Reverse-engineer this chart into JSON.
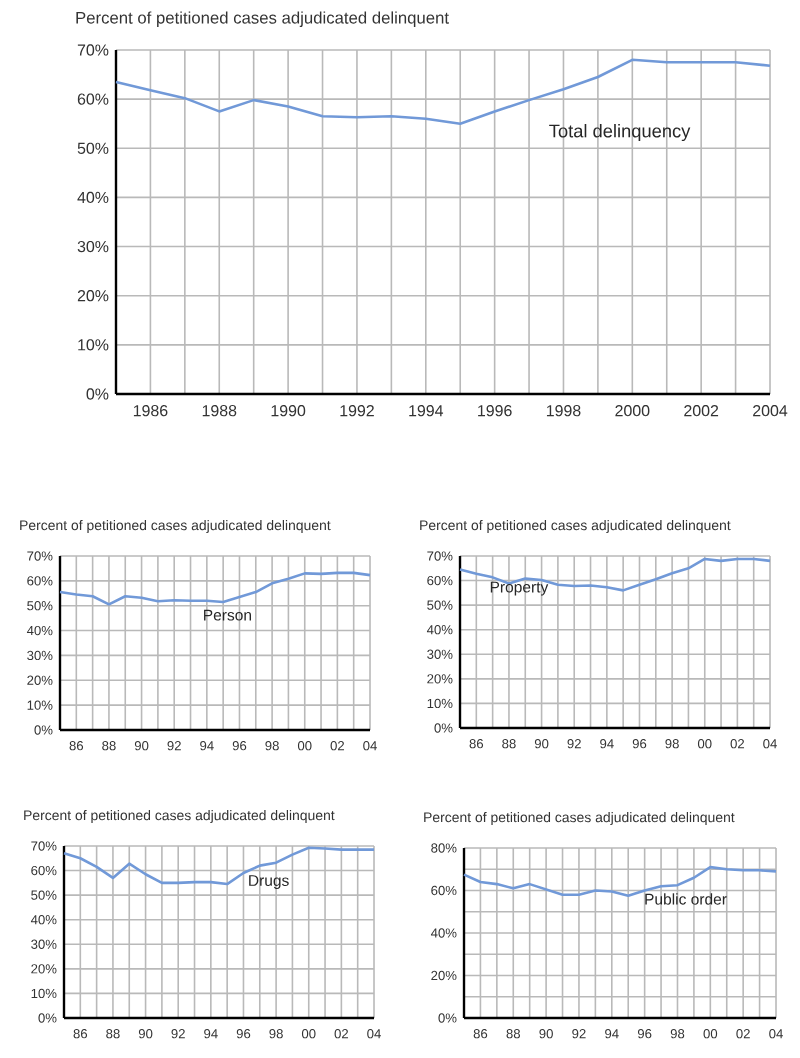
{
  "chart_data": [
    {
      "type": "line",
      "ylabel": "Percent of petitioned cases adjudicated delinquent",
      "x": [
        1985,
        1986,
        1987,
        1988,
        1989,
        1990,
        1991,
        1992,
        1993,
        1994,
        1995,
        1996,
        1997,
        1998,
        1999,
        2000,
        2001,
        2002,
        2003,
        2004
      ],
      "series": [
        {
          "name": "Total delinquency",
          "color": "#7199d8",
          "values": [
            63.5,
            61.8,
            60.2,
            57.5,
            59.8,
            58.5,
            56.5,
            56.3,
            56.5,
            56.0,
            55.0,
            57.5,
            59.8,
            62.0,
            64.5,
            68.0,
            67.5,
            67.5,
            67.5,
            66.8
          ]
        }
      ],
      "xlim": [
        1985,
        2004
      ],
      "ylim": [
        0,
        70
      ],
      "xticks": [
        {
          "value": 1985,
          "label": null
        },
        1986,
        {
          "value": 1987,
          "label": null
        },
        1988,
        {
          "value": 1989,
          "label": null
        },
        1990,
        {
          "value": 1991,
          "label": null
        },
        1992,
        {
          "value": 1993,
          "label": null
        },
        1994,
        {
          "value": 1995,
          "label": null
        },
        1996,
        {
          "value": 1997,
          "label": null
        },
        1998,
        {
          "value": 1999,
          "label": null
        },
        2000,
        {
          "value": 2001,
          "label": null
        },
        2002,
        {
          "value": 2003,
          "label": null
        },
        2004
      ],
      "yticks": [
        {
          "value": 0,
          "label": "0%"
        },
        {
          "value": 10,
          "label": "10%"
        },
        {
          "value": 20,
          "label": "20%"
        },
        {
          "value": 30,
          "label": "30%"
        },
        {
          "value": 40,
          "label": "40%"
        },
        {
          "value": 50,
          "label": "50%"
        },
        {
          "value": 60,
          "label": "60%"
        },
        {
          "value": 70,
          "label": "70%"
        }
      ],
      "grid": true
    },
    {
      "type": "line",
      "ylabel": "Percent of petitioned cases adjudicated delinquent",
      "x": [
        1985,
        1986,
        1987,
        1988,
        1989,
        1990,
        1991,
        1992,
        1993,
        1994,
        1995,
        1996,
        1997,
        1998,
        1999,
        2000,
        2001,
        2002,
        2003,
        2004
      ],
      "series": [
        {
          "name": "Person",
          "color": "#7199d8",
          "values": [
            55.5,
            54.5,
            53.8,
            50.5,
            53.8,
            53.2,
            51.8,
            52.2,
            52.0,
            52.0,
            51.5,
            53.5,
            55.5,
            59.0,
            60.8,
            63.0,
            62.8,
            63.2,
            63.2,
            62.3
          ]
        }
      ],
      "xlim": [
        1985,
        2004
      ],
      "ylim": [
        0,
        70
      ],
      "xticks": [
        {
          "value": 1985,
          "label": null
        },
        {
          "value": 1986,
          "label": "86"
        },
        {
          "value": 1987,
          "label": null
        },
        {
          "value": 1988,
          "label": "88"
        },
        {
          "value": 1989,
          "label": null
        },
        {
          "value": 1990,
          "label": "90"
        },
        {
          "value": 1991,
          "label": null
        },
        {
          "value": 1992,
          "label": "92"
        },
        {
          "value": 1993,
          "label": null
        },
        {
          "value": 1994,
          "label": "94"
        },
        {
          "value": 1995,
          "label": null
        },
        {
          "value": 1996,
          "label": "96"
        },
        {
          "value": 1997,
          "label": null
        },
        {
          "value": 1998,
          "label": "98"
        },
        {
          "value": 1999,
          "label": null
        },
        {
          "value": 2000,
          "label": "00"
        },
        {
          "value": 2001,
          "label": null
        },
        {
          "value": 2002,
          "label": "02"
        },
        {
          "value": 2003,
          "label": null
        },
        {
          "value": 2004,
          "label": "04"
        }
      ],
      "yticks": [
        {
          "value": 0,
          "label": "0%"
        },
        {
          "value": 10,
          "label": "10%"
        },
        {
          "value": 20,
          "label": "20%"
        },
        {
          "value": 30,
          "label": "30%"
        },
        {
          "value": 40,
          "label": "40%"
        },
        {
          "value": 50,
          "label": "50%"
        },
        {
          "value": 60,
          "label": "60%"
        },
        {
          "value": 70,
          "label": "70%"
        }
      ],
      "grid": true
    },
    {
      "type": "line",
      "ylabel": "Percent of petitioned cases adjudicated delinquent",
      "x": [
        1985,
        1986,
        1987,
        1988,
        1989,
        1990,
        1991,
        1992,
        1993,
        1994,
        1995,
        1996,
        1997,
        1998,
        1999,
        2000,
        2001,
        2002,
        2003,
        2004
      ],
      "series": [
        {
          "name": "Property",
          "color": "#7199d8",
          "values": [
            64.5,
            62.8,
            61.3,
            58.8,
            60.8,
            60.2,
            58.3,
            57.8,
            58.0,
            57.3,
            56.0,
            58.3,
            60.5,
            63.0,
            65.0,
            68.8,
            68.0,
            68.8,
            68.8,
            68.0
          ]
        }
      ],
      "xlim": [
        1985,
        2004
      ],
      "ylim": [
        0,
        70
      ],
      "xticks": [
        {
          "value": 1985,
          "label": null
        },
        {
          "value": 1986,
          "label": "86"
        },
        {
          "value": 1987,
          "label": null
        },
        {
          "value": 1988,
          "label": "88"
        },
        {
          "value": 1989,
          "label": null
        },
        {
          "value": 1990,
          "label": "90"
        },
        {
          "value": 1991,
          "label": null
        },
        {
          "value": 1992,
          "label": "92"
        },
        {
          "value": 1993,
          "label": null
        },
        {
          "value": 1994,
          "label": "94"
        },
        {
          "value": 1995,
          "label": null
        },
        {
          "value": 1996,
          "label": "96"
        },
        {
          "value": 1997,
          "label": null
        },
        {
          "value": 1998,
          "label": "98"
        },
        {
          "value": 1999,
          "label": null
        },
        {
          "value": 2000,
          "label": "00"
        },
        {
          "value": 2001,
          "label": null
        },
        {
          "value": 2002,
          "label": "02"
        },
        {
          "value": 2003,
          "label": null
        },
        {
          "value": 2004,
          "label": "04"
        }
      ],
      "yticks": [
        {
          "value": 0,
          "label": "0%"
        },
        {
          "value": 10,
          "label": "10%"
        },
        {
          "value": 20,
          "label": "20%"
        },
        {
          "value": 30,
          "label": "30%"
        },
        {
          "value": 40,
          "label": "40%"
        },
        {
          "value": 50,
          "label": "50%"
        },
        {
          "value": 60,
          "label": "60%"
        },
        {
          "value": 70,
          "label": "70%"
        }
      ],
      "grid": true
    },
    {
      "type": "line",
      "ylabel": "Percent of petitioned cases adjudicated delinquent",
      "x": [
        1985,
        1986,
        1987,
        1988,
        1989,
        1990,
        1991,
        1992,
        1993,
        1994,
        1995,
        1996,
        1997,
        1998,
        1999,
        2000,
        2001,
        2002,
        2003,
        2004
      ],
      "series": [
        {
          "name": "Drugs",
          "color": "#7199d8",
          "values": [
            67.0,
            65.0,
            61.5,
            57.0,
            62.8,
            58.5,
            55.0,
            55.0,
            55.3,
            55.3,
            54.5,
            59.0,
            62.0,
            63.2,
            66.5,
            69.3,
            69.0,
            68.5,
            68.5,
            68.5
          ]
        }
      ],
      "xlim": [
        1985,
        2004
      ],
      "ylim": [
        0,
        70
      ],
      "xticks": [
        {
          "value": 1985,
          "label": null
        },
        {
          "value": 1986,
          "label": "86"
        },
        {
          "value": 1987,
          "label": null
        },
        {
          "value": 1988,
          "label": "88"
        },
        {
          "value": 1989,
          "label": null
        },
        {
          "value": 1990,
          "label": "90"
        },
        {
          "value": 1991,
          "label": null
        },
        {
          "value": 1992,
          "label": "92"
        },
        {
          "value": 1993,
          "label": null
        },
        {
          "value": 1994,
          "label": "94"
        },
        {
          "value": 1995,
          "label": null
        },
        {
          "value": 1996,
          "label": "96"
        },
        {
          "value": 1997,
          "label": null
        },
        {
          "value": 1998,
          "label": "98"
        },
        {
          "value": 1999,
          "label": null
        },
        {
          "value": 2000,
          "label": "00"
        },
        {
          "value": 2001,
          "label": null
        },
        {
          "value": 2002,
          "label": "02"
        },
        {
          "value": 2003,
          "label": null
        },
        {
          "value": 2004,
          "label": "04"
        }
      ],
      "yticks": [
        {
          "value": 0,
          "label": "0%"
        },
        {
          "value": 10,
          "label": "10%"
        },
        {
          "value": 20,
          "label": "20%"
        },
        {
          "value": 30,
          "label": "30%"
        },
        {
          "value": 40,
          "label": "40%"
        },
        {
          "value": 50,
          "label": "50%"
        },
        {
          "value": 60,
          "label": "60%"
        },
        {
          "value": 70,
          "label": "70%"
        }
      ],
      "grid": true
    },
    {
      "type": "line",
      "ylabel": "Percent of petitioned cases adjudicated delinquent",
      "x": [
        1985,
        1986,
        1987,
        1988,
        1989,
        1990,
        1991,
        1992,
        1993,
        1994,
        1995,
        1996,
        1997,
        1998,
        1999,
        2000,
        2001,
        2002,
        2003,
        2004
      ],
      "series": [
        {
          "name": "Public order",
          "color": "#7199d8",
          "values": [
            67.5,
            64.0,
            63.0,
            61.0,
            63.0,
            60.5,
            58.0,
            58.0,
            60.0,
            59.5,
            57.5,
            60.0,
            62.0,
            62.5,
            66.0,
            71.0,
            70.0,
            69.5,
            69.5,
            69.0
          ]
        }
      ],
      "xlim": [
        1985,
        2004
      ],
      "ylim": [
        0,
        80
      ],
      "xticks": [
        {
          "value": 1985,
          "label": null
        },
        {
          "value": 1986,
          "label": "86"
        },
        {
          "value": 1987,
          "label": null
        },
        {
          "value": 1988,
          "label": "88"
        },
        {
          "value": 1989,
          "label": null
        },
        {
          "value": 1990,
          "label": "90"
        },
        {
          "value": 1991,
          "label": null
        },
        {
          "value": 1992,
          "label": "92"
        },
        {
          "value": 1993,
          "label": null
        },
        {
          "value": 1994,
          "label": "94"
        },
        {
          "value": 1995,
          "label": null
        },
        {
          "value": 1996,
          "label": "96"
        },
        {
          "value": 1997,
          "label": null
        },
        {
          "value": 1998,
          "label": "98"
        },
        {
          "value": 1999,
          "label": null
        },
        {
          "value": 2000,
          "label": "00"
        },
        {
          "value": 2001,
          "label": null
        },
        {
          "value": 2002,
          "label": "02"
        },
        {
          "value": 2003,
          "label": null
        },
        {
          "value": 2004,
          "label": "04"
        }
      ],
      "yticks": [
        {
          "value": 0,
          "label": "0%"
        },
        {
          "value": 10,
          "label": null
        },
        {
          "value": 20,
          "label": "20%"
        },
        {
          "value": 30,
          "label": null
        },
        {
          "value": 40,
          "label": "40%"
        },
        {
          "value": 50,
          "label": null
        },
        {
          "value": 60,
          "label": "60%"
        },
        {
          "value": 70,
          "label": null
        },
        {
          "value": 80,
          "label": "80%"
        }
      ],
      "grid": true
    }
  ]
}
